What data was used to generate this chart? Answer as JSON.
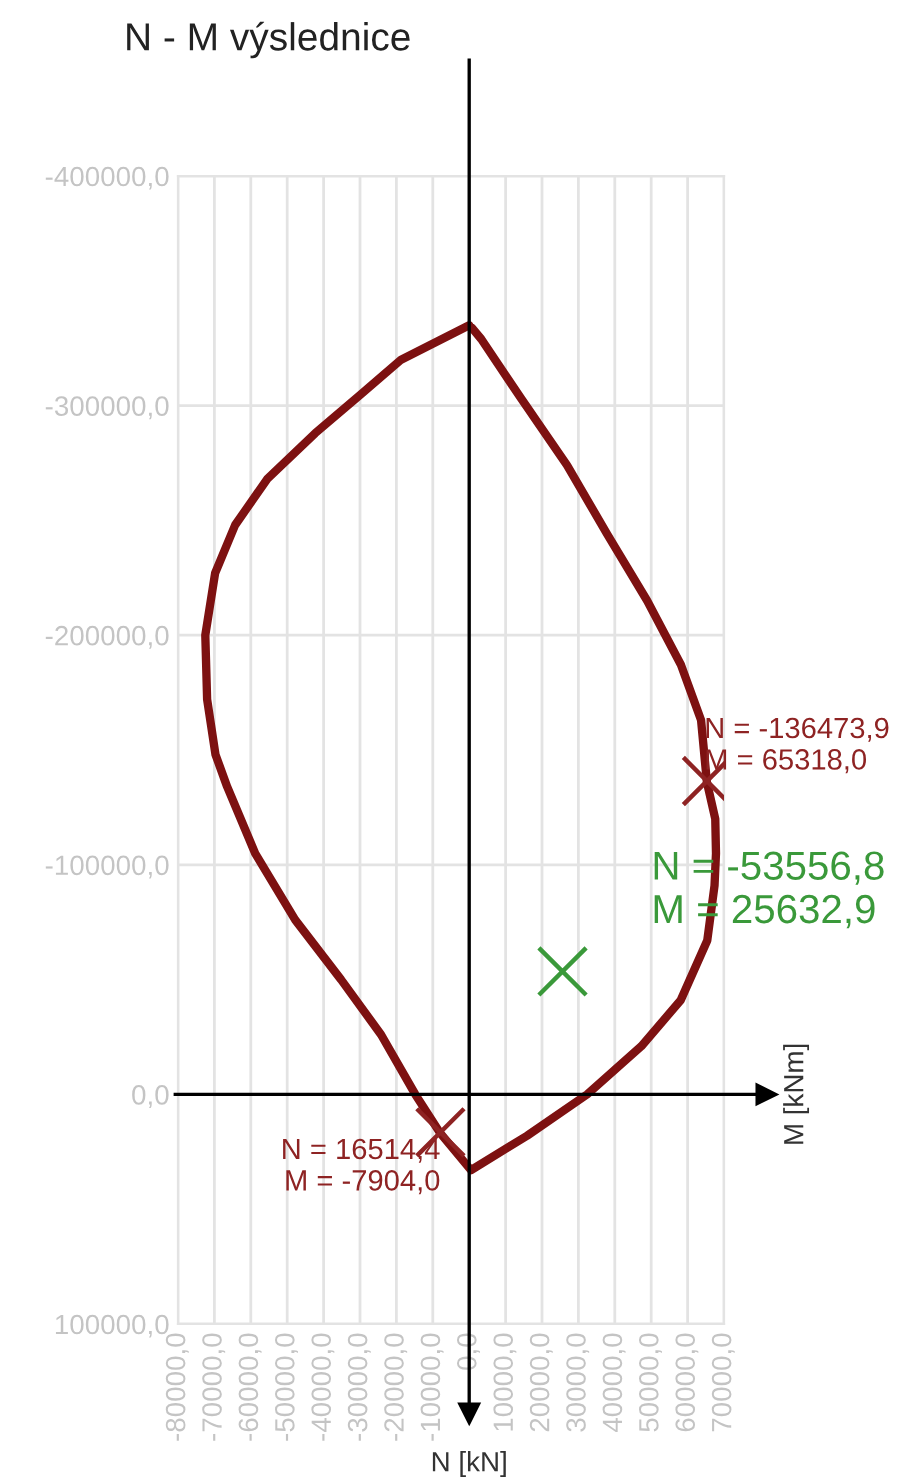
{
  "chart_data": {
    "type": "line",
    "title": "N - M výslednice",
    "xlim": [
      -80000,
      70000
    ],
    "ylim": [
      100000,
      -400000
    ],
    "xticks": [
      {
        "value": -80000,
        "label": "-80000,0"
      },
      {
        "value": -70000,
        "label": "-70000,0"
      },
      {
        "value": -60000,
        "label": "-60000,0"
      },
      {
        "value": -50000,
        "label": "-50000,0"
      },
      {
        "value": -40000,
        "label": "-40000,0"
      },
      {
        "value": -30000,
        "label": "-30000,0"
      },
      {
        "value": -20000,
        "label": "-20000,0"
      },
      {
        "value": -10000,
        "label": "-10000,0"
      },
      {
        "value": 0,
        "label": "0,0"
      },
      {
        "value": 10000,
        "label": "10000,0"
      },
      {
        "value": 20000,
        "label": "20000,0"
      },
      {
        "value": 30000,
        "label": "30000,0"
      },
      {
        "value": 40000,
        "label": "40000,0"
      },
      {
        "value": 50000,
        "label": "50000,0"
      },
      {
        "value": 60000,
        "label": "60000,0"
      },
      {
        "value": 70000,
        "label": "70000,0"
      }
    ],
    "yticks": [
      {
        "value": -400000,
        "label": "-400000,0"
      },
      {
        "value": -300000,
        "label": "-300000,0"
      },
      {
        "value": -200000,
        "label": "-200000,0"
      },
      {
        "value": -100000,
        "label": "-100000,0"
      },
      {
        "value": 0,
        "label": "0,0"
      },
      {
        "value": 100000,
        "label": "100000,0"
      }
    ],
    "grid": true,
    "series": [
      {
        "color": "#7d1111",
        "x": [
          0,
          -18700,
          -29700,
          -42300,
          -55500,
          -64300,
          -69800,
          -72500,
          -72000,
          -69700,
          -66500,
          -58800,
          -47800,
          -35200,
          -24200,
          -14800,
          -7900,
          500,
          15900,
          32400,
          47300,
          58100,
          65400,
          67400,
          67800,
          67600,
          65300,
          63700,
          58200,
          48900,
          37900,
          26900,
          14300,
          3300,
          700
        ],
        "values": [
          -335000,
          -320000,
          -305000,
          -288000,
          -268000,
          -248000,
          -227000,
          -200000,
          -172000,
          -148000,
          -134000,
          -105000,
          -76000,
          -50000,
          -26000,
          0,
          17000,
          33000,
          18000,
          0,
          -21000,
          -41000,
          -67000,
          -91000,
          -105000,
          -120000,
          -136000,
          -163000,
          -187000,
          -215000,
          -244000,
          -274000,
          -303000,
          -329000,
          -334000
        ]
      },
      {
        "type": "scatter",
        "marker": "cross",
        "color": "#8e2323",
        "x": [
          65318.0,
          -7904.0
        ],
        "values": [
          -136473.9,
          16514.4
        ]
      },
      {
        "type": "scatter",
        "marker": "cross",
        "color": "#3a993a",
        "x": [
          25632.9
        ],
        "values": [
          -53556.8
        ]
      }
    ],
    "annotations": [
      {
        "text": "N = -136473,9\nM = 65318,0",
        "x": 65318.0,
        "y": -136473.9
      },
      {
        "text": "N = 16514,4\nM = -7904,0",
        "x": -7904.0,
        "y": 16514.4
      },
      {
        "text": "N = -53556,8\nM = 25632,9",
        "x": 25632.9,
        "y": -53556.8
      },
      "M [kNm]",
      "N [kN]"
    ]
  }
}
